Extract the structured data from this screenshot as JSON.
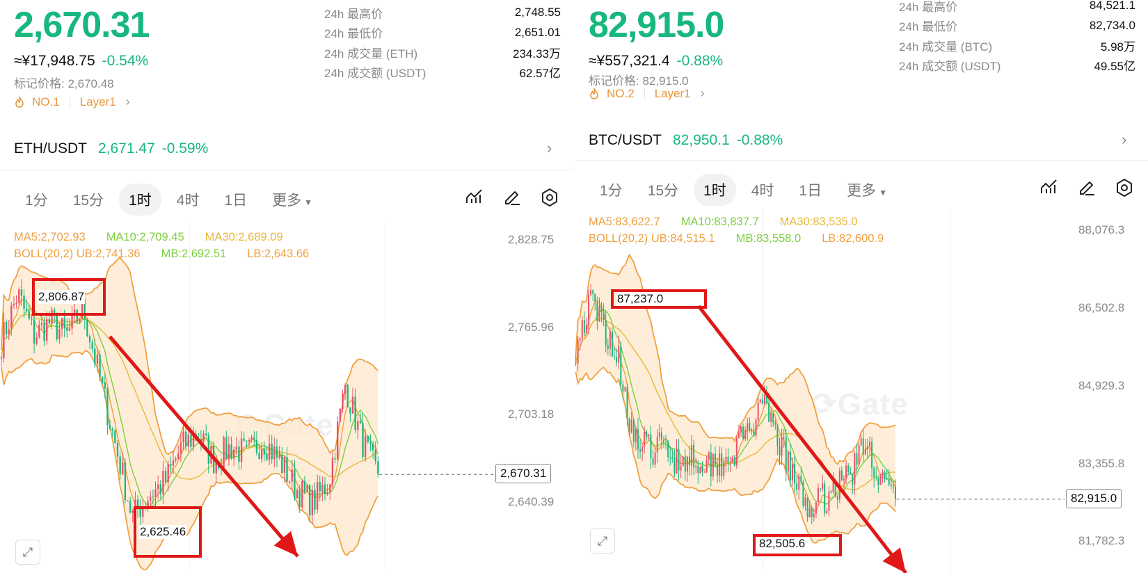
{
  "colors": {
    "up": "#e9506b",
    "down": "#17b77e",
    "accent": "#17b77e",
    "annotation": "#e01818",
    "boll": "#f0a040",
    "band_fill": "#fde8cc",
    "ma5": "#f0a040",
    "ma10": "#7ccf3f",
    "ma30": "#e8b83a"
  },
  "panels": [
    {
      "price": "2,670.31",
      "cny": "≈¥17,948.75",
      "change": "-0.54%",
      "mark_price": "标记价格: 2,670.48",
      "rank": "NO.1",
      "category": "Layer1",
      "stats": [
        {
          "label": "24h 最高价",
          "value": "2,748.55"
        },
        {
          "label": "24h 最低价",
          "value": "2,651.01"
        },
        {
          "label": "24h 成交量 (ETH)",
          "value": "234.33万"
        },
        {
          "label": "24h 成交额 (USDT)",
          "value": "62.57亿"
        }
      ],
      "pair": "ETH/USDT",
      "pair_price": "2,671.47",
      "pair_change": "-0.59%",
      "tabs": [
        "1分",
        "15分",
        "1时",
        "4时",
        "1日",
        "更多"
      ],
      "active_tab": "1时",
      "ma": [
        "MA5:2,702.93",
        "MA10:2,709.45",
        "MA30:2,689.09"
      ],
      "boll": [
        "BOLL(20,2) UB:2,741.36",
        "MB:2,692.51",
        "LB:2,643.66"
      ],
      "axis": [
        "2,828.75",
        "2,765.96",
        "2,703.18",
        "2,640.39"
      ],
      "axis_range": [
        2601.5,
        2851.3
      ],
      "current_price_label": "2,670.31",
      "current_price_value": 2670.31,
      "high_label": "2,806.87",
      "low_label": "2,625.46",
      "high_value": 2806.87,
      "low_value": 2625.46,
      "seed": 7,
      "trend": [
        2765,
        2800,
        2770,
        2780,
        2770,
        2790,
        2740,
        2690,
        2640,
        2655,
        2665,
        2690,
        2700,
        2680,
        2690,
        2685,
        2695,
        2680,
        2660,
        2650,
        2665,
        2735,
        2695,
        2670
      ],
      "end_at": 0.66,
      "candles": 150
    },
    {
      "price": "82,915.0",
      "cny": "≈¥557,321.4",
      "change": "-0.88%",
      "mark_price": "标记价格: 82,915.0",
      "rank": "NO.2",
      "category": "Layer1",
      "stats": [
        {
          "label": "24h 最高价",
          "value": "84,521.1"
        },
        {
          "label": "24h 最低价",
          "value": "82,734.0"
        },
        {
          "label": "24h 成交量 (BTC)",
          "value": "5.98万"
        },
        {
          "label": "24h 成交额 (USDT)",
          "value": "49.55亿"
        }
      ],
      "pair": "BTC/USDT",
      "pair_price": "82,950.1",
      "pair_change": "-0.88%",
      "tabs": [
        "1分",
        "15分",
        "1时",
        "4时",
        "1日",
        "更多"
      ],
      "active_tab": "1时",
      "ma": [
        "MA5:83,622.7",
        "MA10:83,837.7",
        "MA30:83,535.0"
      ],
      "boll": [
        "BOLL(20,2) UB:84,515.1",
        "MB:83,558.0",
        "LB:82,600.9"
      ],
      "axis": [
        "88,076.3",
        "86,502.8",
        "84,929.3",
        "83,355.8",
        "81,782.3"
      ],
      "axis_range": [
        81420,
        88800
      ],
      "current_price_label": "82,915.0",
      "current_price_value": 82915.0,
      "high_label": "87,237.0",
      "low_label": "82,505.6",
      "high_value": 87237.0,
      "low_value": 82505.6,
      "seed": 19,
      "trend": [
        86000,
        86900,
        86400,
        85700,
        84100,
        83900,
        84000,
        83700,
        83800,
        83650,
        83700,
        83900,
        84400,
        84700,
        84100,
        83300,
        82750,
        82900,
        83200,
        83500,
        84050,
        83300,
        82915
      ],
      "end_at": 0.56,
      "candles": 150
    }
  ]
}
